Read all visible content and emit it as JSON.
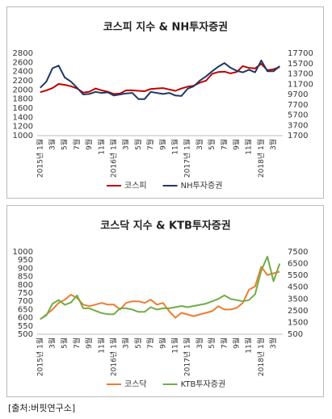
{
  "chart_data": [
    {
      "type": "line",
      "title": "코스피 지수 & NH투자증권",
      "categories": [
        "2015년 1월",
        null,
        "3월",
        null,
        "5월",
        null,
        "7월",
        null,
        "9월",
        null,
        "11월",
        null,
        "2016년 1월",
        null,
        "3월",
        null,
        "5월",
        null,
        "7월",
        null,
        "9월",
        null,
        "11월",
        null,
        "2017년 1월",
        null,
        "3월",
        null,
        "5월",
        null,
        "7월",
        null,
        "9월",
        null,
        "11월",
        null,
        "2018년 1월",
        null,
        "3월",
        null
      ],
      "series": [
        {
          "name": "코스피",
          "color": "#c00000",
          "values": [
            1950,
            1990,
            2040,
            2130,
            2110,
            2080,
            2030,
            1940,
            1960,
            2030,
            1990,
            1960,
            1910,
            1920,
            1990,
            1990,
            1980,
            1970,
            2020,
            2030,
            2040,
            2010,
            1980,
            2030,
            2070,
            2090,
            2160,
            2200,
            2350,
            2390,
            2400,
            2360,
            2390,
            2520,
            2480,
            2470,
            2570,
            2430,
            2450,
            2500
          ]
        },
        {
          "name": "NH투자증권",
          "color": "#1f3864",
          "axis": "y2",
          "values": [
            11000,
            12200,
            14800,
            15300,
            13000,
            12200,
            11000,
            9700,
            9800,
            10200,
            10000,
            10100,
            9500,
            9700,
            9900,
            10000,
            8800,
            8800,
            10200,
            10000,
            9800,
            10000,
            9500,
            9400,
            10800,
            11300,
            12400,
            13200,
            14200,
            15100,
            15800,
            14900,
            14300,
            14000,
            14500,
            14000,
            16300,
            14200,
            14200,
            15200
          ]
        }
      ],
      "ylim": [
        1000,
        2800
      ],
      "yticks": [
        1000,
        1200,
        1400,
        1600,
        1800,
        2000,
        2200,
        2400,
        2600,
        2800
      ],
      "y2lim": [
        1700,
        17700
      ],
      "y2ticks": [
        1700,
        3700,
        5700,
        7700,
        9700,
        11700,
        13700,
        15700,
        17700
      ],
      "legend": "bottom"
    },
    {
      "type": "line",
      "title": "코스닥 지수 & KTB투자증권",
      "categories": [
        "2015년 1월",
        null,
        "3월",
        null,
        "5월",
        null,
        "7월",
        null,
        "9월",
        null,
        "11월",
        null,
        "2016년 1월",
        null,
        "3월",
        null,
        "5월",
        null,
        "7월",
        null,
        "9월",
        null,
        "11월",
        null,
        "2017년 1월",
        null,
        "3월",
        null,
        "5월",
        null,
        "7월",
        null,
        "9월",
        null,
        "11월",
        null,
        "2018년 1월",
        null,
        "3월",
        null
      ],
      "series": [
        {
          "name": "코스닥",
          "color": "#ed7d31",
          "values": [
            590,
            620,
            650,
            690,
            710,
            740,
            720,
            680,
            670,
            680,
            690,
            680,
            680,
            650,
            690,
            700,
            700,
            690,
            710,
            680,
            690,
            640,
            600,
            630,
            620,
            610,
            620,
            630,
            640,
            670,
            650,
            650,
            660,
            690,
            770,
            790,
            910,
            860,
            870,
            880
          ]
        },
        {
          "name": "KTB투자증권",
          "color": "#70ad47",
          "axis": "y2",
          "values": [
            1800,
            2100,
            3100,
            3400,
            3000,
            3200,
            3800,
            2700,
            2700,
            2500,
            2300,
            2200,
            2200,
            2700,
            2700,
            2600,
            2400,
            2400,
            2800,
            2600,
            2700,
            2700,
            2800,
            2900,
            2800,
            2900,
            3000,
            3100,
            3300,
            3500,
            3800,
            3500,
            3400,
            3300,
            3400,
            3900,
            5900,
            7100,
            5000,
            6500
          ]
        }
      ],
      "ylim": [
        500,
        1000
      ],
      "yticks": [
        500,
        550,
        600,
        650,
        700,
        750,
        800,
        850,
        900,
        950,
        1000
      ],
      "y2lim": [
        500,
        7500
      ],
      "y2ticks": [
        500,
        1500,
        2500,
        3500,
        4500,
        5500,
        6500,
        7500
      ],
      "legend": "bottom"
    }
  ],
  "source": "[출처:버핏연구소]"
}
